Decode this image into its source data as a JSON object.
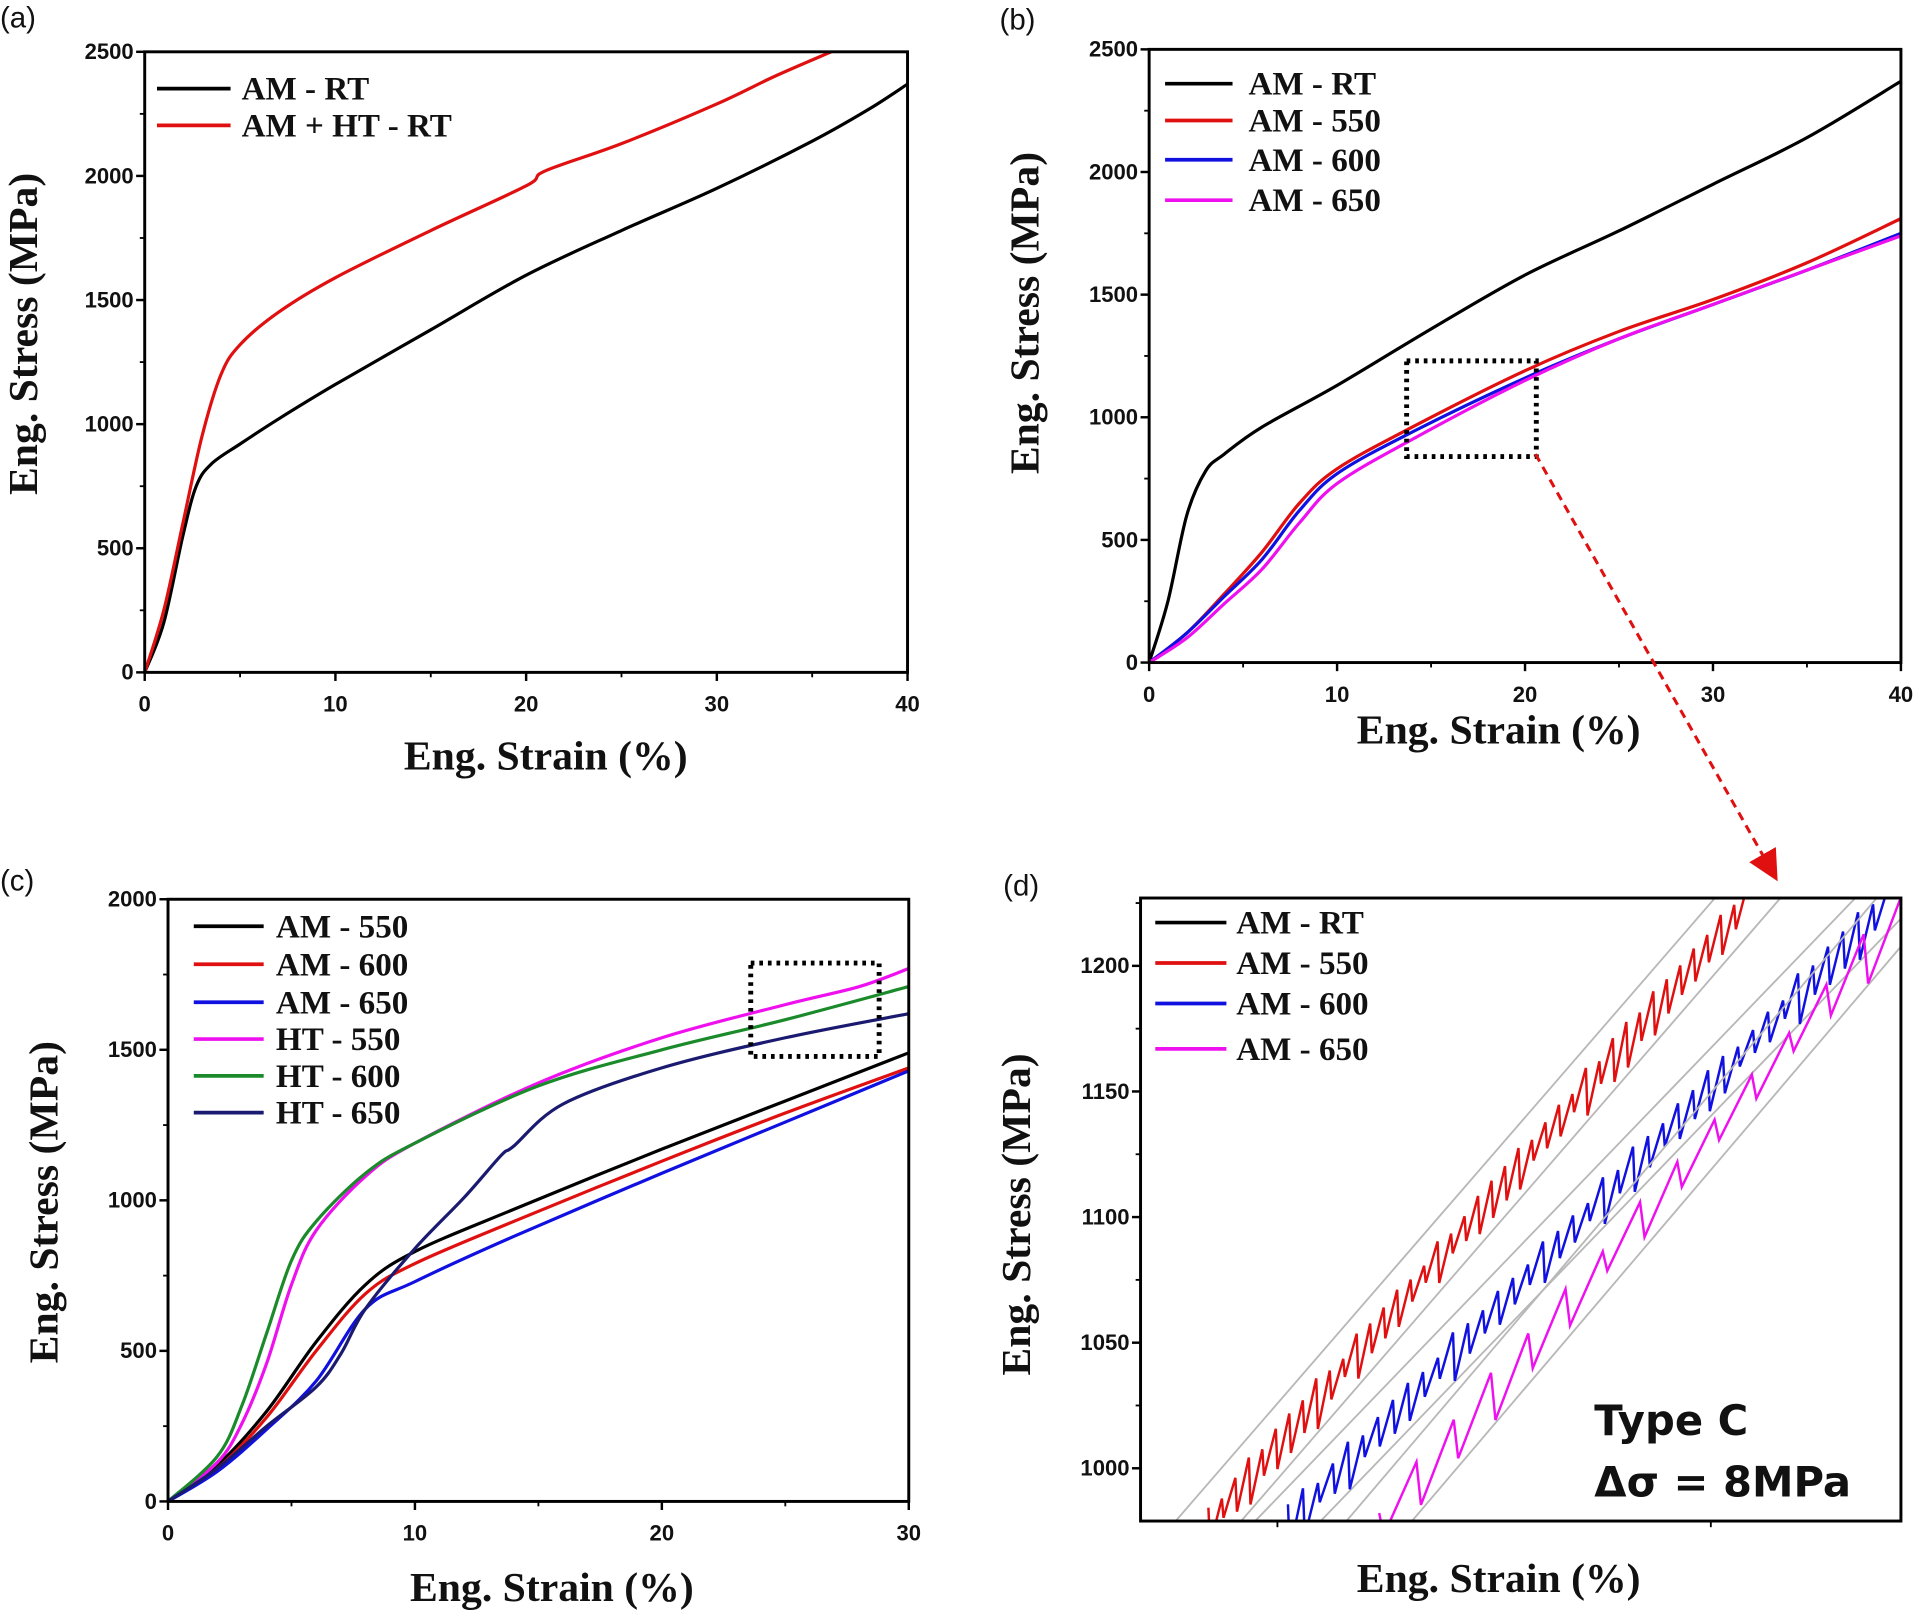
{
  "chart_data": [
    {
      "panel_label": "(a)",
      "type": "line",
      "xlabel": "Eng. Strain (%)",
      "ylabel": "Eng. Stress (MPa)",
      "xlim": [
        0,
        40
      ],
      "ylim": [
        0,
        2500
      ],
      "xticks": [
        "0",
        "10",
        "20",
        "30",
        "40"
      ],
      "yticks": [
        "0",
        "500",
        "1000",
        "1500",
        "2000",
        "2500"
      ],
      "legend": "top-left",
      "series": [
        {
          "name": "AM - RT",
          "color": "#000000",
          "x": [
            0,
            1,
            2,
            2.7,
            3.5,
            5,
            7,
            10,
            15,
            20,
            25,
            30,
            35,
            38,
            40
          ],
          "y": [
            0,
            200,
            550,
            750,
            840,
            920,
            1020,
            1160,
            1380,
            1600,
            1780,
            1950,
            2140,
            2270,
            2370
          ]
        },
        {
          "name": "AM + HT - RT",
          "color": "#e01010",
          "x": [
            0,
            1,
            2,
            3,
            4,
            5,
            7,
            10,
            15,
            20,
            21,
            25,
            30,
            33,
            36
          ],
          "y": [
            0,
            250,
            600,
            950,
            1200,
            1320,
            1450,
            1590,
            1780,
            1960,
            2020,
            2130,
            2290,
            2400,
            2500
          ]
        }
      ]
    },
    {
      "panel_label": "(b)",
      "type": "line",
      "xlabel": "Eng. Strain (%)",
      "ylabel": "Eng. Stress (MPa)",
      "xlim": [
        0,
        40
      ],
      "ylim": [
        0,
        2500
      ],
      "xticks": [
        "0",
        "10",
        "20",
        "30",
        "40"
      ],
      "yticks": [
        "0",
        "500",
        "1000",
        "1500",
        "2000",
        "2500"
      ],
      "legend": "top-left",
      "zoom_box": {
        "x": [
          13.7,
          20.6
        ],
        "y": [
          840,
          1230
        ]
      },
      "series": [
        {
          "name": "AM - RT",
          "color": "#000000",
          "x": [
            0,
            1,
            2,
            3,
            4,
            6,
            10,
            15,
            20,
            25,
            30,
            35,
            40
          ],
          "y": [
            0,
            250,
            600,
            780,
            850,
            960,
            1130,
            1360,
            1580,
            1760,
            1950,
            2140,
            2370
          ]
        },
        {
          "name": "AM - 550",
          "color": "#e01010",
          "x": [
            0,
            2,
            4,
            6,
            8,
            10,
            14,
            20,
            25,
            30,
            35,
            40
          ],
          "y": [
            0,
            120,
            280,
            450,
            650,
            790,
            960,
            1190,
            1350,
            1480,
            1630,
            1810
          ]
        },
        {
          "name": "AM - 600",
          "color": "#1010e0",
          "x": [
            0,
            2,
            4,
            6,
            8,
            10,
            14,
            20,
            25,
            30,
            35,
            40
          ],
          "y": [
            0,
            120,
            270,
            420,
            620,
            770,
            940,
            1160,
            1320,
            1460,
            1600,
            1750
          ]
        },
        {
          "name": "AM - 650",
          "color": "#ee10ee",
          "x": [
            0,
            2,
            4,
            6,
            8,
            10,
            14,
            20,
            25,
            30,
            35,
            40
          ],
          "y": [
            0,
            100,
            240,
            380,
            570,
            730,
            910,
            1150,
            1320,
            1460,
            1600,
            1740
          ]
        }
      ]
    },
    {
      "panel_label": "(c)",
      "type": "line",
      "xlabel": "Eng. Strain (%)",
      "ylabel": "Eng. Stress (MPa)",
      "xlim": [
        0,
        30
      ],
      "ylim": [
        0,
        2000
      ],
      "xticks": [
        "0",
        "10",
        "20",
        "30"
      ],
      "yticks": [
        "0",
        "500",
        "1000",
        "1500",
        "2000"
      ],
      "legend": "top-left",
      "zoom_box": {
        "x": [
          23.6,
          28.8
        ],
        "y": [
          1478,
          1788
        ]
      },
      "series": [
        {
          "name": "AM - 550",
          "color": "#000000",
          "x": [
            0,
            2,
            4,
            6,
            8,
            10,
            14,
            20,
            25,
            30
          ],
          "y": [
            0,
            120,
            300,
            530,
            720,
            830,
            970,
            1170,
            1330,
            1490
          ]
        },
        {
          "name": "AM - 600",
          "color": "#e01010",
          "x": [
            0,
            2,
            4,
            6,
            8,
            10,
            14,
            20,
            25,
            30
          ],
          "y": [
            0,
            110,
            280,
            500,
            690,
            790,
            930,
            1130,
            1290,
            1440
          ]
        },
        {
          "name": "AM - 650",
          "color": "#1010e0",
          "x": [
            0,
            2,
            4,
            6,
            8,
            10,
            14,
            20,
            25,
            30
          ],
          "y": [
            0,
            100,
            240,
            400,
            640,
            730,
            880,
            1090,
            1260,
            1430
          ]
        },
        {
          "name": "HT - 550",
          "color": "#ee10ee",
          "x": [
            0,
            2,
            3,
            4,
            5,
            6,
            8,
            10,
            15,
            20,
            25,
            28,
            30
          ],
          "y": [
            0,
            130,
            260,
            460,
            720,
            900,
            1080,
            1190,
            1390,
            1540,
            1650,
            1710,
            1770
          ]
        },
        {
          "name": "HT - 600",
          "color": "#1a8a2a",
          "x": [
            0,
            2,
            3,
            4,
            5,
            6,
            8,
            10,
            15,
            20,
            25,
            30
          ],
          "y": [
            0,
            150,
            320,
            560,
            800,
            930,
            1090,
            1190,
            1380,
            1500,
            1600,
            1710
          ]
        },
        {
          "name": "HT - 650",
          "color": "#1a1a70",
          "x": [
            0,
            2,
            4,
            6,
            7,
            8,
            10,
            12,
            13.5,
            14,
            16,
            20,
            25,
            30
          ],
          "y": [
            0,
            110,
            250,
            380,
            490,
            640,
            840,
            1010,
            1150,
            1180,
            1320,
            1440,
            1540,
            1620
          ]
        }
      ]
    },
    {
      "panel_label": "(d)",
      "type": "line",
      "xlabel": "Eng. Strain (%)",
      "ylabel": "Eng. Stress (MPa)",
      "xlim": [
        14,
        20.5
      ],
      "ylim": [
        979,
        1227
      ],
      "xticks": [],
      "yticks": [
        "1000",
        "1050",
        "1100",
        "1150",
        "1200"
      ],
      "legend": "top-left",
      "annotation": [
        "Type C",
        "Δσ = 8MPa"
      ],
      "serration_amplitude_mpa": 8,
      "series": [
        {
          "name": "AM - RT",
          "color": "#000000",
          "x": [],
          "y": []
        },
        {
          "name": "AM - 550",
          "color": "#e01010",
          "x": [
            14.58,
            19.19
          ],
          "y": [
            979,
            1227
          ]
        },
        {
          "name": "AM - 600",
          "color": "#1010e0",
          "x": [
            15.26,
            20.39
          ],
          "y": [
            979,
            1227
          ]
        },
        {
          "name": "AM - 650",
          "color": "#ee10ee",
          "x": [
            16.04,
            20.5
          ],
          "y": [
            979,
            1223
          ]
        }
      ]
    }
  ]
}
